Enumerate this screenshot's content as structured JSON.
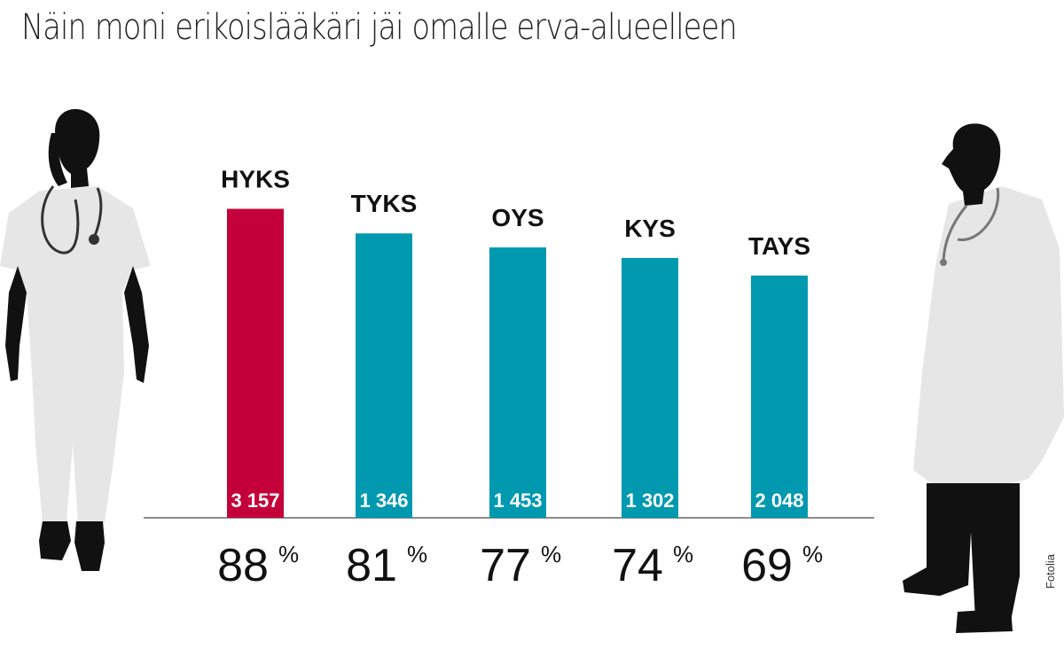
{
  "title": "Näin moni erikoislääkäri jäi omalle erva-alueelleen",
  "credit": "Fotolia",
  "colors": {
    "highlight": "#c4003a",
    "bar": "#0099b0",
    "silhouette": "#111111",
    "coat": "#e6e6e6"
  },
  "chart_data": {
    "type": "bar",
    "title": "Näin moni erikoislääkäri jäi omalle erva-alueelleen",
    "categories": [
      "HYKS",
      "TYKS",
      "OYS",
      "KYS",
      "TAYS"
    ],
    "values": [
      88,
      81,
      77,
      74,
      69
    ],
    "value_unit": "%",
    "value_labels": [
      "88",
      "81",
      "77",
      "74",
      "69"
    ],
    "counts": [
      "3 157",
      "1 346",
      "1 453",
      "1 302",
      "2 048"
    ],
    "highlight_index": 0,
    "ylim": [
      0,
      100
    ],
    "xlabel": "",
    "ylabel": "",
    "grid": false
  }
}
